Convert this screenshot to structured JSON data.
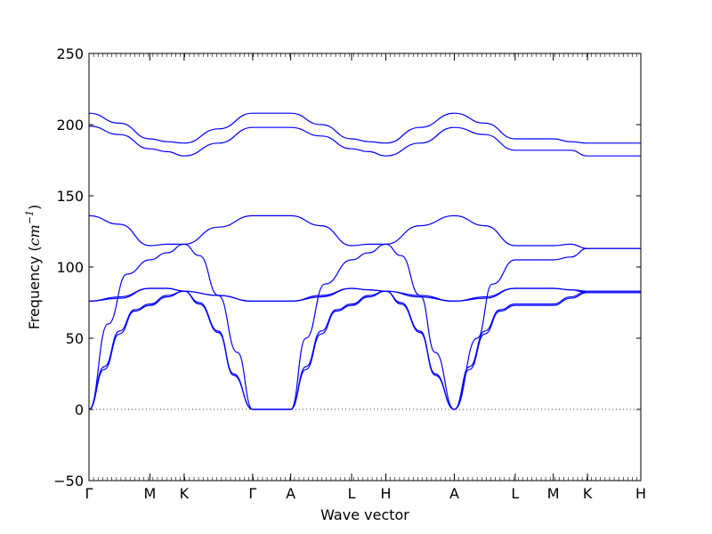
{
  "chart_data": {
    "type": "line",
    "xlabel": "Wave vector",
    "ylabel": "Frequency ",
    "ylabel_unit": "cm",
    "ylabel_unit_exp": "−1",
    "ylim": [
      -50,
      250
    ],
    "yticks": [
      -50,
      0,
      50,
      100,
      150,
      200,
      250
    ],
    "xlim": [
      0,
      14.5
    ],
    "xticks": [
      {
        "label": "Γ",
        "x": 0
      },
      {
        "label": "M",
        "x": 1.6
      },
      {
        "label": "K",
        "x": 2.5
      },
      {
        "label": "Γ",
        "x": 4.3
      },
      {
        "label": "A",
        "x": 5.3
      },
      {
        "label": "L",
        "x": 6.9
      },
      {
        "label": "H",
        "x": 7.8
      },
      {
        "label": "A",
        "x": 9.6
      },
      {
        "label": "L",
        "x": 11.2
      },
      {
        "label": "M",
        "x": 12.2
      },
      {
        "label": "K",
        "x": 13.1
      },
      {
        "label": "H",
        "x": 14.5
      }
    ],
    "zero_line": true,
    "line_color": "#0000ff",
    "series": [
      {
        "x": [
          0,
          0.8,
          1.6,
          2.05,
          2.5,
          3.4,
          4.3,
          4.8,
          5.3,
          6.1,
          6.9,
          7.35,
          7.8,
          8.7,
          9.6,
          10.4,
          11.2,
          11.7,
          12.2,
          12.65,
          13.1,
          13.8,
          14.5
        ],
        "values": [
          208,
          201,
          190,
          188,
          187,
          197,
          208,
          208,
          208,
          200,
          190,
          188,
          187,
          198,
          208,
          201,
          190,
          190,
          190,
          188,
          187,
          187,
          187
        ]
      },
      {
        "x": [
          0,
          0.8,
          1.6,
          2.05,
          2.5,
          3.4,
          4.3,
          4.8,
          5.3,
          6.1,
          6.9,
          7.35,
          7.8,
          8.7,
          9.6,
          10.4,
          11.2,
          11.7,
          12.2,
          12.65,
          13.1,
          13.8,
          14.5
        ],
        "values": [
          199,
          193,
          183,
          181,
          178,
          187,
          198,
          198,
          198,
          192,
          183,
          181,
          178,
          187,
          198,
          193,
          182,
          182,
          182,
          182,
          178,
          178,
          178
        ]
      },
      {
        "x": [
          0,
          0.8,
          1.6,
          2.05,
          2.5,
          3.4,
          4.3,
          4.8,
          5.3,
          6.1,
          6.9,
          7.35,
          7.8,
          8.7,
          9.6,
          10.4,
          11.2,
          11.7,
          12.2,
          12.65,
          13.1,
          13.8,
          14.5
        ],
        "values": [
          136,
          130,
          115,
          116,
          116,
          128,
          136,
          136,
          136,
          129,
          115,
          116,
          116,
          129,
          136,
          129,
          115,
          115,
          115,
          116,
          113,
          113,
          113
        ]
      },
      {
        "x": [
          0,
          0.5,
          1.0,
          1.6,
          2.05,
          2.5,
          2.9,
          3.4,
          3.9,
          4.3,
          4.8,
          5.3,
          5.7,
          6.2,
          6.9,
          7.35,
          7.8,
          8.2,
          8.7,
          9.1,
          9.6,
          10.2,
          10.6,
          11.2,
          11.7,
          12.2,
          12.65,
          13.1,
          13.8,
          14.5
        ],
        "values": [
          0,
          60,
          95,
          105,
          110,
          116,
          108,
          80,
          40,
          0,
          0,
          0,
          50,
          88,
          105,
          110,
          116,
          108,
          80,
          40,
          0,
          50,
          88,
          105,
          105,
          105,
          107,
          113,
          113,
          113
        ]
      },
      {
        "x": [
          0,
          0.8,
          1.6,
          2.05,
          2.5,
          3.4,
          4.3,
          4.8,
          5.3,
          6.1,
          6.9,
          7.35,
          7.8,
          8.7,
          9.6,
          10.4,
          11.2,
          11.7,
          12.2,
          12.65,
          13.1,
          13.8,
          14.5
        ],
        "values": [
          76,
          79,
          85,
          85,
          83,
          80,
          76,
          76,
          76,
          80,
          85,
          84,
          83,
          80,
          76,
          79,
          85,
          85,
          85,
          84,
          82,
          82,
          82
        ]
      },
      {
        "x": [
          0,
          0.8,
          1.6,
          2.05,
          2.5,
          3.4,
          4.3,
          4.8,
          5.3,
          6.1,
          6.9,
          7.35,
          7.8,
          8.7,
          9.6,
          10.4,
          11.2,
          11.7,
          12.2,
          12.65,
          13.1,
          13.8,
          14.5
        ],
        "values": [
          76,
          78,
          85,
          85,
          83,
          80,
          76,
          76,
          76,
          79,
          85,
          84,
          83,
          79,
          76,
          78,
          85,
          85,
          85,
          84,
          83,
          83,
          83
        ]
      },
      {
        "x": [
          0,
          0.4,
          0.8,
          1.2,
          1.6,
          2.05,
          2.5,
          2.9,
          3.4,
          3.8,
          4.3,
          4.8,
          5.3,
          5.7,
          6.1,
          6.5,
          6.9,
          7.35,
          7.8,
          8.2,
          8.7,
          9.1,
          9.6,
          10.0,
          10.4,
          10.8,
          11.2,
          11.7,
          12.2,
          12.65,
          13.1,
          13.8,
          14.5
        ],
        "values": [
          0,
          30,
          55,
          70,
          74,
          80,
          83,
          75,
          55,
          25,
          0,
          0,
          0,
          30,
          55,
          70,
          74,
          80,
          83,
          75,
          55,
          25,
          0,
          30,
          55,
          70,
          74,
          74,
          74,
          79,
          83,
          83,
          83
        ]
      },
      {
        "x": [
          0,
          0.4,
          0.8,
          1.2,
          1.6,
          2.05,
          2.5,
          2.9,
          3.4,
          3.8,
          4.3,
          4.8,
          5.3,
          5.7,
          6.1,
          6.5,
          6.9,
          7.35,
          7.8,
          8.2,
          8.7,
          9.1,
          9.6,
          10.0,
          10.4,
          10.8,
          11.2,
          11.7,
          12.2,
          12.65,
          13.1,
          13.8,
          14.5
        ],
        "values": [
          0,
          28,
          53,
          69,
          73,
          79,
          83,
          74,
          54,
          24,
          0,
          0,
          0,
          28,
          53,
          69,
          73,
          79,
          83,
          74,
          54,
          24,
          0,
          28,
          53,
          69,
          73,
          73,
          73,
          78,
          82,
          82,
          82
        ]
      }
    ]
  }
}
